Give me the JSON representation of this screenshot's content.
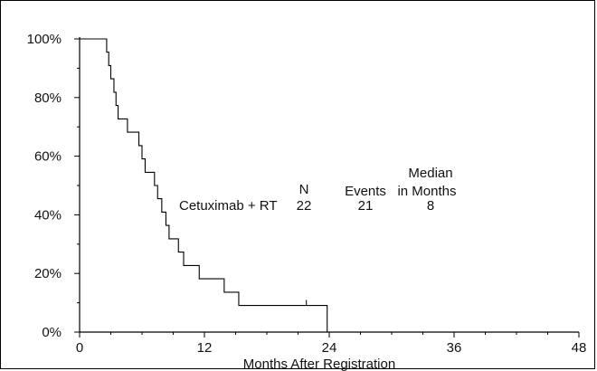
{
  "chart_data": {
    "type": "line",
    "subtype": "kaplan-meier-step",
    "title": "",
    "xlabel": "Months After Registration",
    "ylabel": "",
    "xlim": [
      0,
      48
    ],
    "ylim": [
      0,
      100
    ],
    "x_ticks": [
      0,
      12,
      24,
      36,
      48
    ],
    "x_tick_labels": [
      "0",
      "12",
      "24",
      "36",
      "48"
    ],
    "y_ticks": [
      0,
      20,
      40,
      60,
      80,
      100
    ],
    "y_tick_labels": [
      "0%",
      "20%",
      "40%",
      "60%",
      "80%",
      "100%"
    ],
    "grid": false,
    "legend": {
      "headers": {
        "n": "N",
        "events": "Events",
        "median_line1": "Median",
        "median_line2": "in Months"
      },
      "rows": [
        {
          "name": "Cetuximab + RT",
          "n": "22",
          "events": "21",
          "median": "8"
        }
      ]
    },
    "series": [
      {
        "name": "Cetuximab + RT",
        "color": "#000000",
        "steps": [
          {
            "x": 0,
            "y": 100
          },
          {
            "x": 2.6,
            "y": 95.5
          },
          {
            "x": 2.8,
            "y": 90.9
          },
          {
            "x": 3.0,
            "y": 86.4
          },
          {
            "x": 3.3,
            "y": 81.8
          },
          {
            "x": 3.5,
            "y": 77.3
          },
          {
            "x": 3.7,
            "y": 72.7
          },
          {
            "x": 4.6,
            "y": 68.2
          },
          {
            "x": 5.7,
            "y": 63.6
          },
          {
            "x": 6.0,
            "y": 59.1
          },
          {
            "x": 6.3,
            "y": 54.5
          },
          {
            "x": 7.2,
            "y": 50.0
          },
          {
            "x": 7.5,
            "y": 45.5
          },
          {
            "x": 7.9,
            "y": 40.9
          },
          {
            "x": 8.3,
            "y": 36.4
          },
          {
            "x": 8.6,
            "y": 31.8
          },
          {
            "x": 9.5,
            "y": 27.3
          },
          {
            "x": 10.0,
            "y": 22.7
          },
          {
            "x": 11.5,
            "y": 18.2
          },
          {
            "x": 13.9,
            "y": 13.6
          },
          {
            "x": 15.3,
            "y": 9.1
          },
          {
            "x": 23.8,
            "y": 0
          }
        ],
        "censored": [
          21.8
        ]
      }
    ]
  }
}
